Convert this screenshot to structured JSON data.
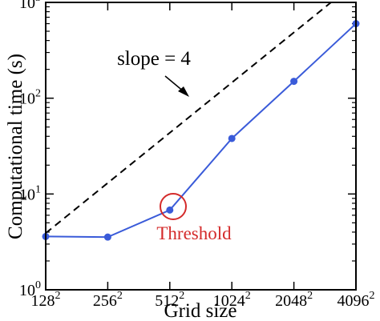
{
  "chart_data": {
    "type": "line",
    "xlabel": "Grid size",
    "ylabel": "Computational time (s)",
    "x_scale": "log2",
    "y_scale": "log10",
    "xlim": [
      128,
      4096
    ],
    "ylim": [
      1,
      1000
    ],
    "x_ticks": [
      {
        "value": 128,
        "base": "128",
        "exp": "2"
      },
      {
        "value": 256,
        "base": "256",
        "exp": "2"
      },
      {
        "value": 512,
        "base": "512",
        "exp": "2"
      },
      {
        "value": 1024,
        "base": "1024",
        "exp": "2"
      },
      {
        "value": 2048,
        "base": "2048",
        "exp": "2"
      },
      {
        "value": 4096,
        "base": "4096",
        "exp": "2"
      }
    ],
    "y_ticks": [
      {
        "value": 1,
        "base": "10",
        "exp": "0"
      },
      {
        "value": 10,
        "base": "10",
        "exp": "1"
      },
      {
        "value": 100,
        "base": "10",
        "exp": "2"
      },
      {
        "value": 1000,
        "base": "10",
        "exp": "3"
      }
    ],
    "series": [
      {
        "color": "#3a5bd9",
        "style": "solid",
        "markers": true,
        "x": [
          128,
          256,
          512,
          1024,
          2048,
          4096
        ],
        "y": [
          3.6,
          3.55,
          6.8,
          38,
          150,
          600
        ]
      }
    ],
    "reference_line": {
      "label": "slope = 4",
      "color": "#000000",
      "style": "dashed",
      "x": [
        128,
        3100
      ],
      "y": [
        3.9,
        1000
      ]
    },
    "annotations": [
      {
        "text": "slope = 4",
        "color": "#000000"
      },
      {
        "text": "Threshold",
        "color": "#d42b2b",
        "target": {
          "x": 512,
          "y": 6.8
        }
      }
    ],
    "grid": false,
    "legend": "none"
  }
}
